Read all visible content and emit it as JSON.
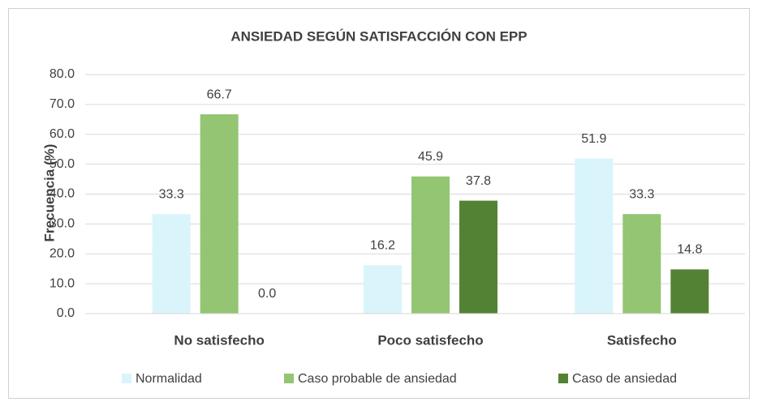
{
  "chart_data": {
    "type": "bar",
    "title": "ANSIEDAD SEGÚN SATISFACCIÓN CON EPP",
    "y_label": "Frecuencia (%)",
    "categories": [
      "No satisfecho",
      "Poco satisfecho",
      "Satisfecho"
    ],
    "series": [
      {
        "name": "Normalidad",
        "color": "#d9f5fb",
        "values": [
          33.3,
          16.2,
          51.9
        ],
        "value_labels": [
          "33.3",
          "16.2",
          "51.9"
        ]
      },
      {
        "name": "Caso probable de ansiedad",
        "color": "#93c572",
        "values": [
          66.7,
          45.9,
          33.3
        ],
        "value_labels": [
          "66.7",
          "45.9",
          "33.3"
        ]
      },
      {
        "name": "Caso de ansiedad",
        "color": "#548235",
        "values": [
          0,
          37.8,
          14.8
        ],
        "value_labels": [
          "0.0",
          "37.8",
          "14.8"
        ]
      }
    ],
    "ylim": [
      0,
      80
    ],
    "yticks": [
      {
        "value": 0,
        "label": "0.0"
      },
      {
        "value": 10,
        "label": "10.0"
      },
      {
        "value": 20,
        "label": "20.0"
      },
      {
        "value": 30,
        "label": "30.0"
      },
      {
        "value": 40,
        "label": "40.0"
      },
      {
        "value": 50,
        "label": "50.0"
      },
      {
        "value": 60,
        "label": "60.0"
      },
      {
        "value": 70,
        "label": "70.0"
      },
      {
        "value": 80,
        "label": "80.0"
      }
    ],
    "grid": true,
    "legend": "bottom"
  }
}
